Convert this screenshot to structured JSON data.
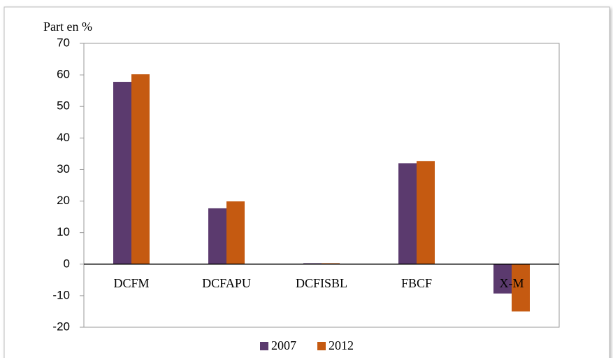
{
  "chart_data": {
    "type": "bar",
    "y_label": "Part en %",
    "categories": [
      "DCFM",
      "DCFAPU",
      "DCFISBL",
      "FBCF",
      "X-M"
    ],
    "series": [
      {
        "name": "2007",
        "color": "#5b3a6e",
        "values": [
          57.8,
          17.7,
          0.3,
          32.0,
          -9.3
        ]
      },
      {
        "name": "2012",
        "color": "#c55a11",
        "values": [
          60.2,
          19.9,
          0.3,
          32.7,
          -15.0
        ]
      }
    ],
    "ylim": [
      -20,
      70
    ],
    "yticks": [
      -20,
      -10,
      0,
      10,
      20,
      30,
      40,
      50,
      60,
      70
    ],
    "legend": "bottom"
  }
}
